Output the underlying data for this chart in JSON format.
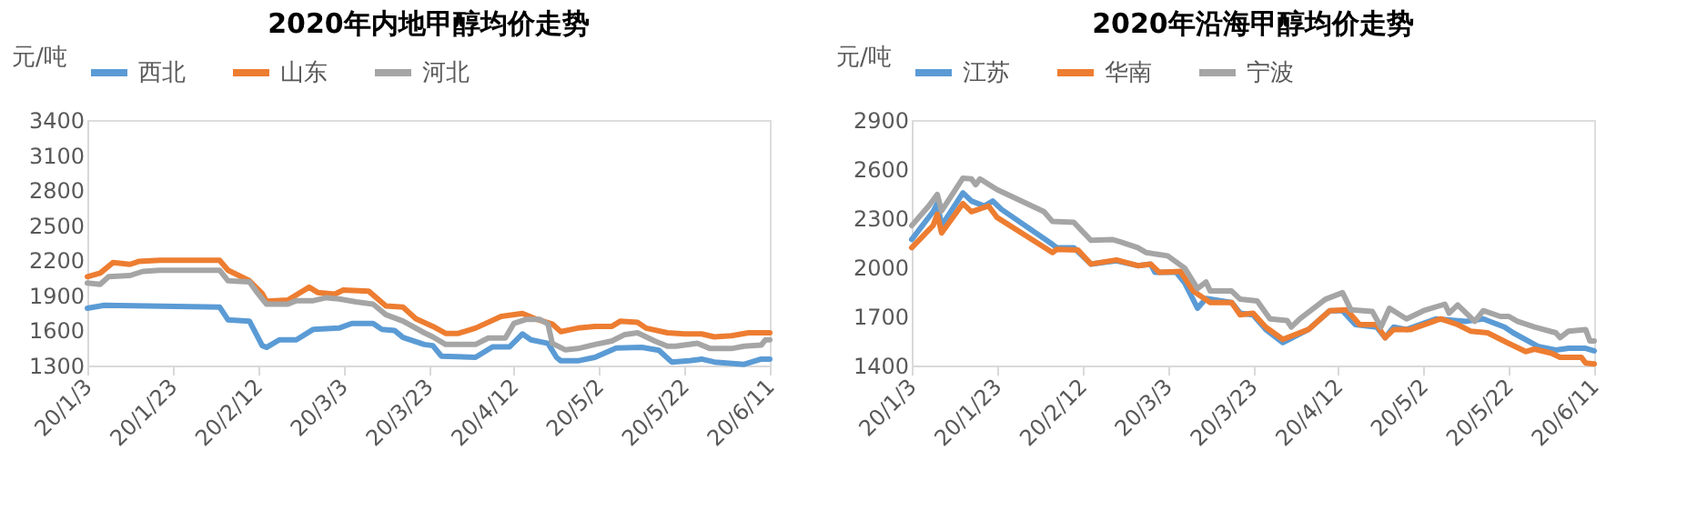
{
  "chart_data": [
    {
      "type": "line",
      "title": "2020年内地甲醇均价走势",
      "ylabel": "元/吨",
      "legend": "top",
      "xlim": [
        "2020-01-03",
        "2020-06-11"
      ],
      "ylim": [
        1300,
        3400
      ],
      "yticks": [
        1300,
        1600,
        1900,
        2200,
        2500,
        2800,
        3100,
        3400
      ],
      "xticks": [
        {
          "value": "2020-01-03",
          "label": "20/1/3"
        },
        {
          "value": "2020-01-23",
          "label": "20/1/23"
        },
        {
          "value": "2020-02-12",
          "label": "20/2/12"
        },
        {
          "value": "2020-03-03",
          "label": "20/3/3"
        },
        {
          "value": "2020-03-23",
          "label": "20/3/23"
        },
        {
          "value": "2020-04-12",
          "label": "20/4/12"
        },
        {
          "value": "2020-05-02",
          "label": "20/5/2"
        },
        {
          "value": "2020-05-22",
          "label": "20/5/22"
        },
        {
          "value": "2020-06-11",
          "label": "20/6/11"
        }
      ],
      "series": [
        {
          "name": "西北",
          "color": "#5b9bd5",
          "x": [
            "2020-01-03",
            "2020-01-07",
            "2020-02-03",
            "2020-02-05",
            "2020-02-10",
            "2020-02-13",
            "2020-02-14",
            "2020-02-17",
            "2020-02-21",
            "2020-02-25",
            "2020-03-02",
            "2020-03-05",
            "2020-03-10",
            "2020-03-12",
            "2020-03-15",
            "2020-03-17",
            "2020-03-22",
            "2020-03-24",
            "2020-03-26",
            "2020-04-03",
            "2020-04-07",
            "2020-04-11",
            "2020-04-14",
            "2020-04-16",
            "2020-04-20",
            "2020-04-22",
            "2020-04-23",
            "2020-04-27",
            "2020-05-01",
            "2020-05-06",
            "2020-05-12",
            "2020-05-16",
            "2020-05-19",
            "2020-05-23",
            "2020-05-26",
            "2020-05-29",
            "2020-06-05",
            "2020-06-09",
            "2020-06-11"
          ],
          "values": [
            1790,
            1815,
            1800,
            1690,
            1680,
            1470,
            1455,
            1520,
            1520,
            1610,
            1620,
            1660,
            1660,
            1610,
            1600,
            1540,
            1480,
            1470,
            1380,
            1370,
            1460,
            1460,
            1570,
            1520,
            1490,
            1370,
            1340,
            1340,
            1370,
            1450,
            1455,
            1430,
            1330,
            1340,
            1355,
            1330,
            1310,
            1355,
            1355
          ]
        },
        {
          "name": "山东",
          "color": "#ed7d31",
          "x": [
            "2020-01-03",
            "2020-01-06",
            "2020-01-09",
            "2020-01-13",
            "2020-01-15",
            "2020-01-20",
            "2020-02-03",
            "2020-02-05",
            "2020-02-10",
            "2020-02-13",
            "2020-02-14",
            "2020-02-19",
            "2020-02-24",
            "2020-02-26",
            "2020-03-01",
            "2020-03-03",
            "2020-03-09",
            "2020-03-13",
            "2020-03-17",
            "2020-03-20",
            "2020-03-24",
            "2020-03-27",
            "2020-03-30",
            "2020-04-03",
            "2020-04-09",
            "2020-04-14",
            "2020-04-17",
            "2020-04-21",
            "2020-04-23",
            "2020-04-27",
            "2020-05-01",
            "2020-05-05",
            "2020-05-07",
            "2020-05-11",
            "2020-05-13",
            "2020-05-18",
            "2020-05-22",
            "2020-05-26",
            "2020-05-29",
            "2020-06-02",
            "2020-06-06",
            "2020-06-11"
          ],
          "values": [
            2060,
            2090,
            2180,
            2165,
            2190,
            2200,
            2200,
            2115,
            2025,
            1915,
            1850,
            1860,
            1970,
            1925,
            1910,
            1945,
            1935,
            1810,
            1800,
            1700,
            1635,
            1575,
            1575,
            1620,
            1720,
            1745,
            1700,
            1655,
            1590,
            1620,
            1635,
            1635,
            1680,
            1670,
            1620,
            1580,
            1570,
            1570,
            1545,
            1555,
            1580,
            1580
          ]
        },
        {
          "name": "河北",
          "color": "#a5a5a5",
          "x": [
            "2020-01-03",
            "2020-01-06",
            "2020-01-08",
            "2020-01-13",
            "2020-01-16",
            "2020-01-20",
            "2020-02-03",
            "2020-02-05",
            "2020-02-10",
            "2020-02-12",
            "2020-02-14",
            "2020-02-19",
            "2020-02-21",
            "2020-02-25",
            "2020-02-28",
            "2020-03-02",
            "2020-03-06",
            "2020-03-10",
            "2020-03-13",
            "2020-03-17",
            "2020-03-22",
            "2020-03-24",
            "2020-03-27",
            "2020-04-03",
            "2020-04-06",
            "2020-04-10",
            "2020-04-12",
            "2020-04-15",
            "2020-04-18",
            "2020-04-20",
            "2020-04-21",
            "2020-04-24",
            "2020-04-27",
            "2020-05-01",
            "2020-05-05",
            "2020-05-08",
            "2020-05-11",
            "2020-05-15",
            "2020-05-18",
            "2020-05-20",
            "2020-05-25",
            "2020-05-28",
            "2020-06-02",
            "2020-06-05",
            "2020-06-09",
            "2020-06-10",
            "2020-06-11"
          ],
          "values": [
            2005,
            1995,
            2060,
            2070,
            2105,
            2115,
            2115,
            2025,
            2015,
            1915,
            1825,
            1825,
            1855,
            1855,
            1880,
            1870,
            1845,
            1825,
            1735,
            1680,
            1580,
            1545,
            1480,
            1480,
            1535,
            1535,
            1660,
            1695,
            1695,
            1655,
            1490,
            1435,
            1445,
            1480,
            1510,
            1565,
            1580,
            1510,
            1465,
            1465,
            1490,
            1445,
            1445,
            1465,
            1475,
            1520,
            1520
          ]
        }
      ]
    },
    {
      "type": "line",
      "title": "2020年沿海甲醇均价走势",
      "ylabel": "元/吨",
      "legend": "top",
      "xlim": [
        "2020-01-03",
        "2020-06-11"
      ],
      "ylim": [
        1400,
        2900
      ],
      "yticks": [
        1400,
        1700,
        2000,
        2300,
        2600,
        2900
      ],
      "xticks": [
        {
          "value": "2020-01-03",
          "label": "20/1/3"
        },
        {
          "value": "2020-01-23",
          "label": "20/1/23"
        },
        {
          "value": "2020-02-12",
          "label": "20/2/12"
        },
        {
          "value": "2020-03-03",
          "label": "20/3/3"
        },
        {
          "value": "2020-03-23",
          "label": "20/3/23"
        },
        {
          "value": "2020-04-12",
          "label": "20/4/12"
        },
        {
          "value": "2020-05-02",
          "label": "20/5/2"
        },
        {
          "value": "2020-05-22",
          "label": "20/5/22"
        },
        {
          "value": "2020-06-11",
          "label": "20/6/11"
        }
      ],
      "series": [
        {
          "name": "江苏",
          "color": "#5b9bd5",
          "x": [
            "2020-01-03",
            "2020-01-08",
            "2020-01-09",
            "2020-01-10",
            "2020-01-15",
            "2020-01-17",
            "2020-01-20",
            "2020-01-22",
            "2020-01-24",
            "2020-02-05",
            "2020-02-06",
            "2020-02-10",
            "2020-02-14",
            "2020-02-20",
            "2020-02-25",
            "2020-02-28",
            "2020-02-29",
            "2020-03-05",
            "2020-03-07",
            "2020-03-10",
            "2020-03-12",
            "2020-03-18",
            "2020-03-20",
            "2020-03-23",
            "2020-03-26",
            "2020-03-30",
            "2020-04-05",
            "2020-04-10",
            "2020-04-13",
            "2020-04-16",
            "2020-04-21",
            "2020-04-23",
            "2020-04-25",
            "2020-04-28",
            "2020-05-05",
            "2020-05-12",
            "2020-05-16",
            "2020-05-21",
            "2020-05-23",
            "2020-05-29",
            "2020-06-02",
            "2020-06-05",
            "2020-06-09",
            "2020-06-11"
          ],
          "values": [
            2170,
            2340,
            2390,
            2255,
            2455,
            2405,
            2375,
            2405,
            2355,
            2140,
            2120,
            2120,
            2020,
            2040,
            2010,
            2020,
            1970,
            1970,
            1905,
            1750,
            1810,
            1785,
            1720,
            1710,
            1620,
            1540,
            1620,
            1735,
            1735,
            1650,
            1635,
            1570,
            1635,
            1620,
            1685,
            1670,
            1685,
            1635,
            1600,
            1515,
            1495,
            1505,
            1505,
            1490
          ]
        },
        {
          "name": "华南",
          "color": "#ed7d31",
          "x": [
            "2020-01-03",
            "2020-01-08",
            "2020-01-09",
            "2020-01-10",
            "2020-01-15",
            "2020-01-17",
            "2020-01-21",
            "2020-01-23",
            "2020-02-05",
            "2020-02-06",
            "2020-02-11",
            "2020-02-14",
            "2020-02-20",
            "2020-02-25",
            "2020-02-28",
            "2020-03-01",
            "2020-03-06",
            "2020-03-09",
            "2020-03-11",
            "2020-03-13",
            "2020-03-18",
            "2020-03-20",
            "2020-03-23",
            "2020-03-26",
            "2020-03-30",
            "2020-04-05",
            "2020-04-10",
            "2020-04-14",
            "2020-04-17",
            "2020-04-21",
            "2020-04-23",
            "2020-04-25",
            "2020-04-29",
            "2020-05-06",
            "2020-05-10",
            "2020-05-13",
            "2020-05-17",
            "2020-05-22",
            "2020-05-26",
            "2020-05-28",
            "2020-06-01",
            "2020-06-03",
            "2020-06-08",
            "2020-06-09",
            "2020-06-11"
          ],
          "values": [
            2120,
            2255,
            2325,
            2210,
            2390,
            2340,
            2375,
            2305,
            2090,
            2110,
            2105,
            2020,
            2045,
            2010,
            2020,
            1970,
            1975,
            1855,
            1820,
            1785,
            1785,
            1710,
            1720,
            1635,
            1560,
            1620,
            1735,
            1740,
            1650,
            1650,
            1570,
            1620,
            1620,
            1685,
            1650,
            1610,
            1600,
            1535,
            1485,
            1500,
            1475,
            1450,
            1450,
            1415,
            1410
          ]
        },
        {
          "name": "宁波",
          "color": "#a5a5a5",
          "x": [
            "2020-01-03",
            "2020-01-07",
            "2020-01-09",
            "2020-01-10",
            "2020-01-15",
            "2020-01-17",
            "2020-01-18",
            "2020-01-19",
            "2020-01-23",
            "2020-02-03",
            "2020-02-05",
            "2020-02-10",
            "2020-02-14",
            "2020-02-19",
            "2020-02-21",
            "2020-02-25",
            "2020-02-27",
            "2020-03-03",
            "2020-03-07",
            "2020-03-10",
            "2020-03-12",
            "2020-03-13",
            "2020-03-18",
            "2020-03-20",
            "2020-03-24",
            "2020-03-27",
            "2020-03-31",
            "2020-04-01",
            "2020-04-03",
            "2020-04-09",
            "2020-04-13",
            "2020-04-15",
            "2020-04-20",
            "2020-04-22",
            "2020-04-24",
            "2020-04-28",
            "2020-05-02",
            "2020-05-07",
            "2020-05-08",
            "2020-05-10",
            "2020-05-14",
            "2020-05-16",
            "2020-05-20",
            "2020-05-22",
            "2020-05-24",
            "2020-05-28",
            "2020-06-02",
            "2020-06-03",
            "2020-06-05",
            "2020-06-09",
            "2020-06-10",
            "2020-06-11"
          ],
          "values": [
            2255,
            2375,
            2445,
            2345,
            2545,
            2540,
            2505,
            2540,
            2475,
            2340,
            2280,
            2275,
            2165,
            2170,
            2155,
            2120,
            2090,
            2070,
            1995,
            1870,
            1910,
            1855,
            1855,
            1805,
            1795,
            1685,
            1675,
            1635,
            1685,
            1805,
            1845,
            1740,
            1730,
            1635,
            1750,
            1685,
            1735,
            1775,
            1720,
            1770,
            1670,
            1735,
            1700,
            1700,
            1670,
            1635,
            1600,
            1570,
            1610,
            1620,
            1550,
            1550
          ]
        }
      ]
    }
  ]
}
